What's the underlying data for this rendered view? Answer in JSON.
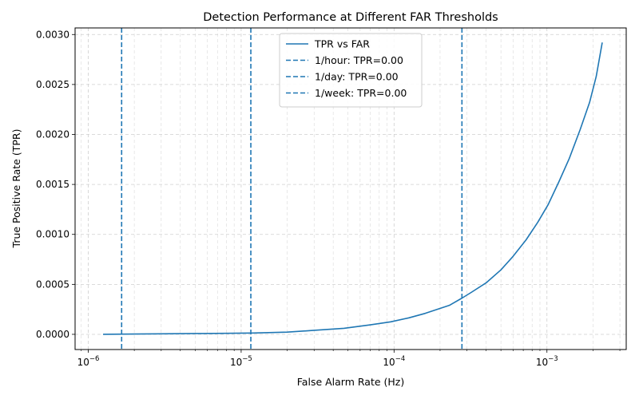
{
  "chart_data": {
    "type": "line",
    "title": "Detection Performance at Different FAR Thresholds",
    "xlabel": "False Alarm Rate (Hz)",
    "ylabel": "True Positive Rate (TPR)",
    "xscale": "log",
    "xlim": [
      8.2e-07,
      0.0033
    ],
    "ylim": [
      -0.000152,
      0.003066
    ],
    "x_ticks": [
      {
        "value": 1e-06,
        "mantissa": "10",
        "exponent": "−6"
      },
      {
        "value": 1e-05,
        "mantissa": "10",
        "exponent": "−5"
      },
      {
        "value": 0.0001,
        "mantissa": "10",
        "exponent": "−4"
      },
      {
        "value": 0.001,
        "mantissa": "10",
        "exponent": "−3"
      }
    ],
    "y_ticks": [
      {
        "value": 0.0,
        "label": "0.0000"
      },
      {
        "value": 0.0005,
        "label": "0.0005"
      },
      {
        "value": 0.001,
        "label": "0.0010"
      },
      {
        "value": 0.0015,
        "label": "0.0015"
      },
      {
        "value": 0.002,
        "label": "0.0020"
      },
      {
        "value": 0.0025,
        "label": "0.0025"
      },
      {
        "value": 0.003,
        "label": "0.0030"
      }
    ],
    "grid": true,
    "legend_position": "top-center",
    "color": "#1f77b4",
    "series": [
      {
        "name": "TPR vs FAR",
        "style": "solid",
        "x": [
          1.25e-06,
          2e-06,
          3e-06,
          5e-06,
          8e-06,
          1.2e-05,
          2e-05,
          3e-05,
          4.7e-05,
          7e-05,
          9.5e-05,
          0.000125,
          0.00016,
          0.00023,
          0.00028,
          0.00032,
          0.0004,
          0.0005,
          0.0006,
          0.00073,
          0.00087,
          0.00102,
          0.0012,
          0.0014,
          0.00165,
          0.0019,
          0.0021,
          0.0023
        ],
        "y": [
          0.0,
          3e-06,
          5e-06,
          8e-06,
          1e-05,
          1.3e-05,
          2.2e-05,
          4e-05,
          6e-05,
          9.5e-05,
          0.000125,
          0.000165,
          0.00021,
          0.00029,
          0.000365,
          0.00042,
          0.000515,
          0.000645,
          0.00078,
          0.000945,
          0.00112,
          0.0013,
          0.00153,
          0.00176,
          0.00205,
          0.00232,
          0.00258,
          0.00292
        ]
      }
    ],
    "thresholds": [
      {
        "name": "1/hour: TPR=0.00",
        "x": 0.000278,
        "style": "dashed"
      },
      {
        "name": "1/day: TPR=0.00",
        "x": 1.157e-05,
        "style": "dashed"
      },
      {
        "name": "1/week: TPR=0.00",
        "x": 1.653e-06,
        "style": "dashed"
      }
    ]
  }
}
